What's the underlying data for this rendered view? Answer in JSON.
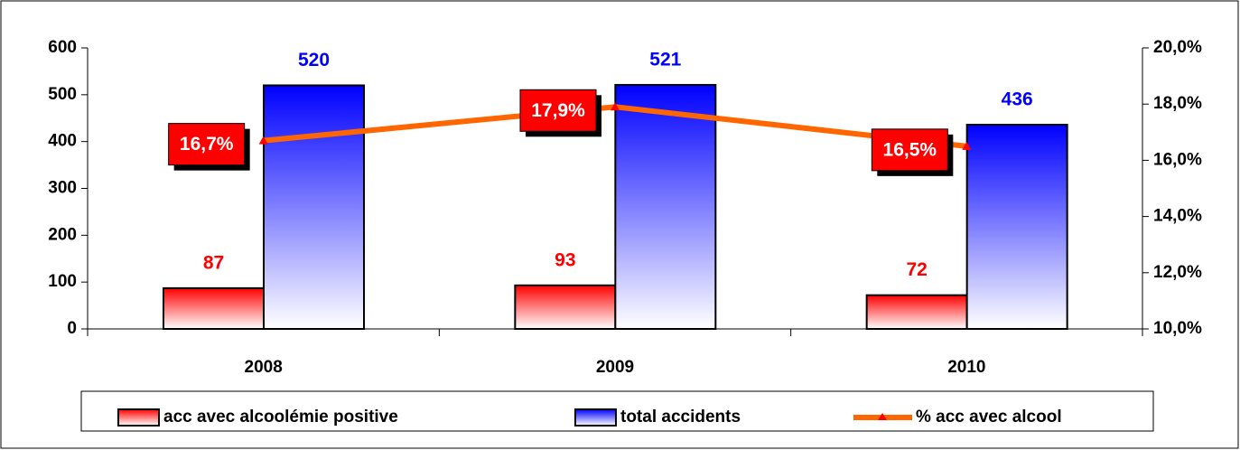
{
  "chart_data": {
    "type": "bar",
    "categories": [
      "2008",
      "2009",
      "2010"
    ],
    "series": [
      {
        "name": "acc avec alcoolémie positive",
        "color": "#ff0000",
        "values": [
          87,
          93,
          72
        ]
      },
      {
        "name": "total accidents",
        "color": "#0000ff",
        "values": [
          520,
          521,
          436
        ]
      },
      {
        "name": "% acc avec alcool",
        "color": "#ff6600",
        "axis": "y2",
        "values": [
          16.7,
          17.9,
          16.5
        ],
        "value_labels": [
          "16,7%",
          "17,9%",
          "16,5%"
        ]
      }
    ],
    "ylim": [
      0,
      600
    ],
    "yticks": [
      0,
      100,
      200,
      300,
      400,
      500,
      600
    ],
    "y2lim": [
      10,
      20
    ],
    "y2ticks": [
      {
        "value": 10,
        "label": "10,0%"
      },
      {
        "value": 12,
        "label": "12,0%"
      },
      {
        "value": 14,
        "label": "14,0%"
      },
      {
        "value": 16,
        "label": "16,0%"
      },
      {
        "value": 18,
        "label": "18,0%"
      },
      {
        "value": 20,
        "label": "20,0%"
      }
    ],
    "legend": "bottom"
  }
}
